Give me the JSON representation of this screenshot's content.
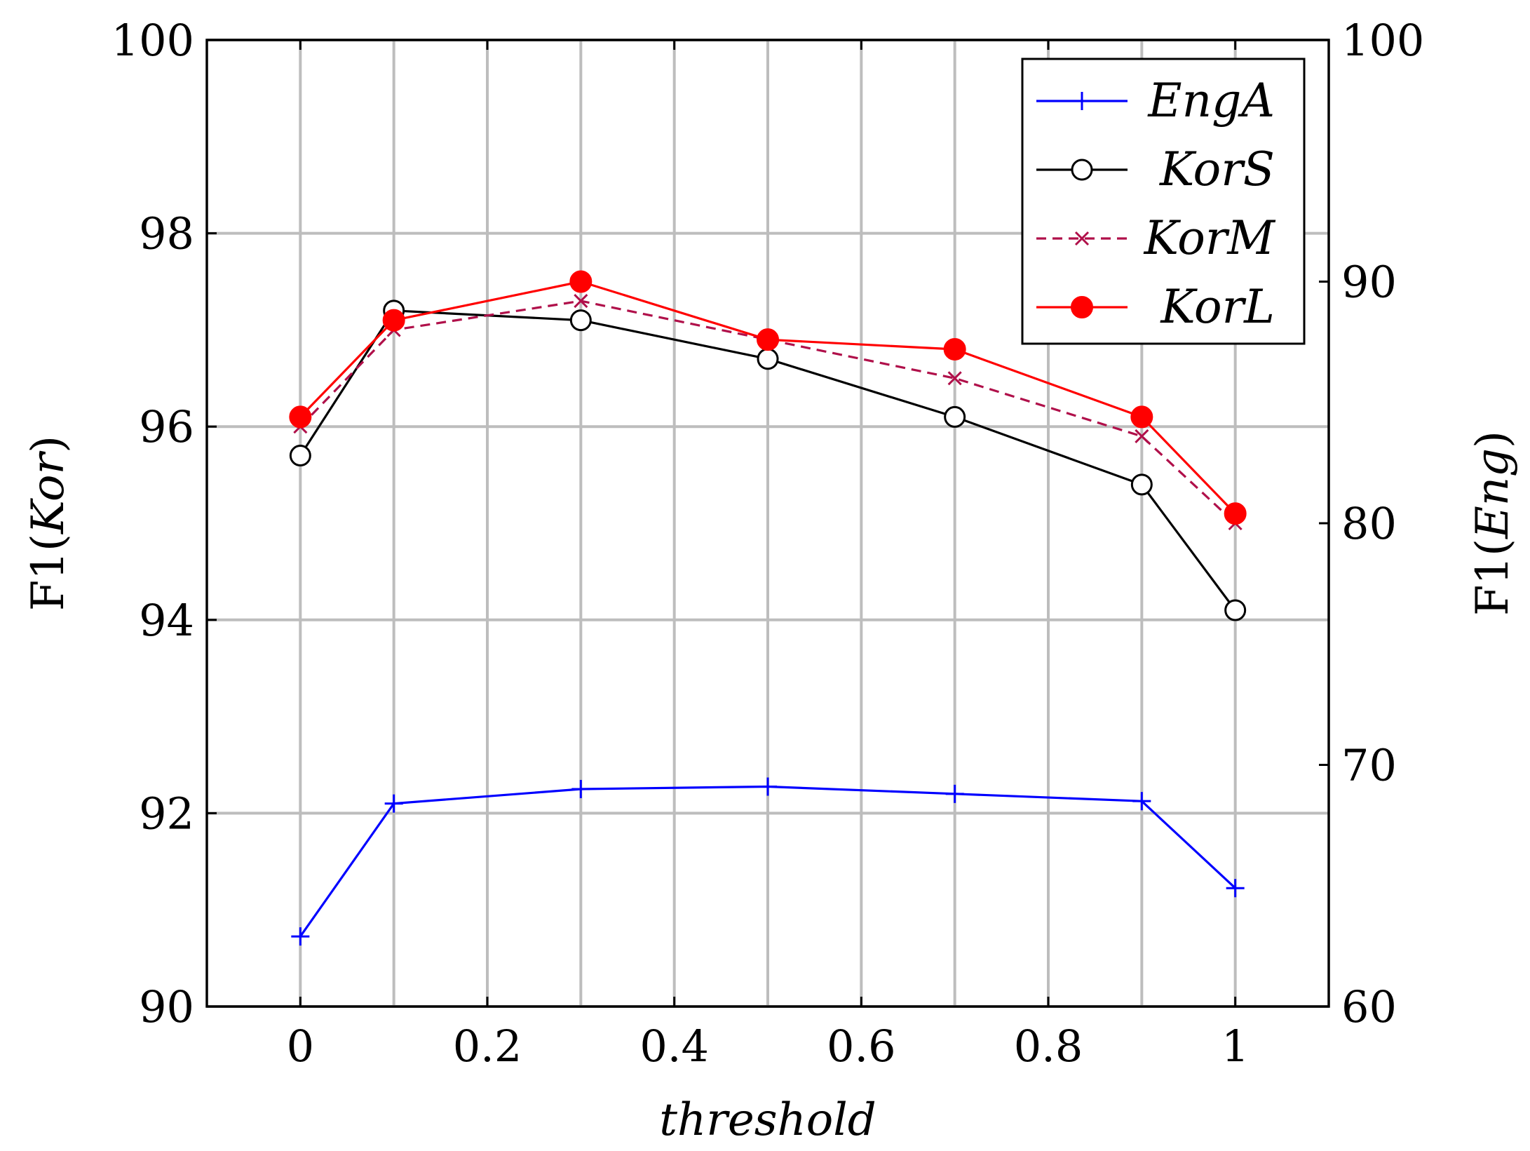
{
  "chart_data": {
    "type": "line",
    "x": [
      0,
      0.1,
      0.3,
      0.5,
      0.7,
      0.9,
      1
    ],
    "xlabel": "threshold",
    "ylabel": {
      "prefix": "F1(",
      "italic": "Kor",
      "suffix": ")"
    },
    "ylabel2": {
      "prefix": "F1(",
      "italic": "Eng",
      "suffix": ")"
    },
    "xlim": [
      -0.1,
      1.1
    ],
    "ylim": [
      90,
      100
    ],
    "ylim2": [
      60,
      100
    ],
    "xticks": [
      0,
      0.2,
      0.4,
      0.6,
      0.8,
      1
    ],
    "xtick_labels": [
      "0",
      "0.2",
      "0.4",
      "0.6",
      "0.8",
      "1"
    ],
    "yticks": [
      90,
      92,
      94,
      96,
      98,
      100
    ],
    "ytick_labels": [
      "90",
      "92",
      "94",
      "96",
      "98",
      "100"
    ],
    "yticks2": [
      60,
      70,
      80,
      90,
      100
    ],
    "ytick2_labels": [
      "60",
      "70",
      "80",
      "90",
      "100"
    ],
    "grid": true,
    "legend_position": "top-right",
    "series": [
      {
        "name": "EngA",
        "axis": "right",
        "color": "#0000ff",
        "marker": "plus",
        "dash": "solid",
        "values": [
          62.9,
          68.4,
          69.0,
          69.1,
          68.8,
          68.5,
          64.9
        ]
      },
      {
        "name": "KorS",
        "axis": "left",
        "color": "#000000",
        "marker": "circle-open",
        "dash": "solid",
        "values": [
          95.7,
          97.2,
          97.1,
          96.7,
          96.1,
          95.4,
          94.1
        ]
      },
      {
        "name": "KorM",
        "axis": "left",
        "color": "#b0104a",
        "marker": "cross",
        "dash": "dashed",
        "values": [
          96.0,
          97.0,
          97.3,
          96.9,
          96.5,
          95.9,
          95.0
        ]
      },
      {
        "name": "KorL",
        "axis": "left",
        "color": "#ff0000",
        "marker": "circle-filled",
        "dash": "solid",
        "values": [
          96.1,
          97.1,
          97.5,
          96.9,
          96.8,
          96.1,
          95.1
        ]
      }
    ]
  }
}
